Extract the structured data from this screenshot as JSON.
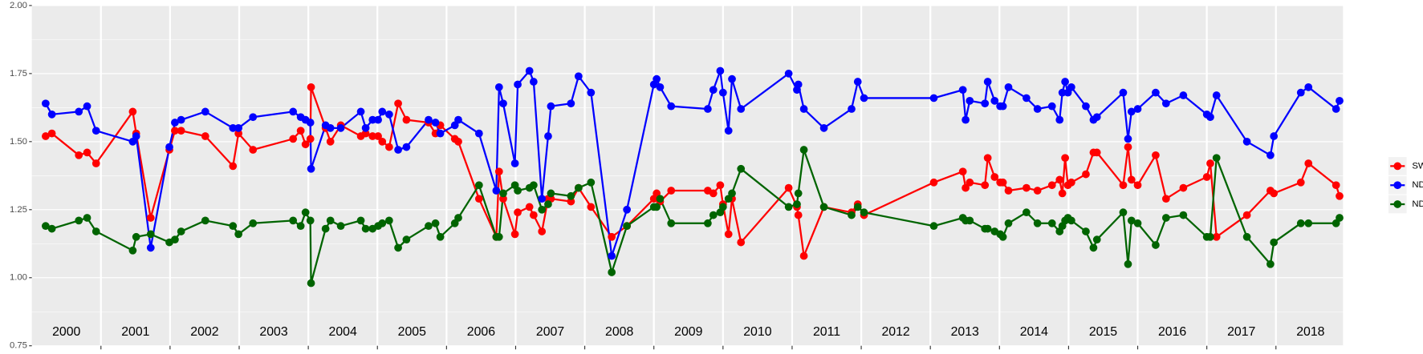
{
  "chart_data": {
    "type": "line",
    "x": [
      2000.2,
      2000.29,
      2000.68,
      2000.8,
      2000.93,
      2001.46,
      2001.51,
      2001.72,
      2001.99,
      2002.07,
      2002.16,
      2002.51,
      2002.91,
      2002.99,
      2003.2,
      2003.78,
      2003.89,
      2003.96,
      2004.03,
      2004.04,
      2004.25,
      2004.32,
      2004.47,
      2004.76,
      2004.83,
      2004.93,
      2005.01,
      2005.07,
      2005.17,
      2005.3,
      2005.42,
      2005.74,
      2005.84,
      2005.91,
      2006.12,
      2006.17,
      2006.47,
      2006.72,
      2006.76,
      2006.82,
      2006.99,
      2007.03,
      2007.2,
      2007.26,
      2007.38,
      2007.47,
      2007.51,
      2007.8,
      2007.91,
      2008.09,
      2008.39,
      2008.61,
      2009,
      2009.04,
      2009.09,
      2009.25,
      2009.78,
      2009.86,
      2009.96,
      2010,
      2010.08,
      2010.13,
      2010.26,
      2010.95,
      2011.07,
      2011.09,
      2011.17,
      2011.46,
      2011.86,
      2011.95,
      2012.04,
      2013.05,
      2013.47,
      2013.51,
      2013.57,
      2013.79,
      2013.83,
      2013.93,
      2014.01,
      2014.05,
      2014.13,
      2014.39,
      2014.55,
      2014.76,
      2014.87,
      2014.91,
      2014.95,
      2014.99,
      2015.04,
      2015.25,
      2015.36,
      2015.41,
      2015.79,
      2015.86,
      2015.91,
      2016,
      2016.26,
      2016.41,
      2016.66,
      2017,
      2017.05,
      2017.14,
      2017.58,
      2017.92,
      2017.97,
      2018.36,
      2018.47,
      2018.87,
      2018.92
    ],
    "series": [
      {
        "name": "SWIR",
        "color": "#ff0000",
        "values": [
          1.52,
          1.53,
          1.45,
          1.46,
          1.42,
          1.61,
          1.53,
          1.22,
          1.47,
          1.54,
          1.54,
          1.52,
          1.41,
          1.53,
          1.47,
          1.51,
          1.54,
          1.49,
          1.51,
          1.7,
          1.55,
          1.5,
          1.56,
          1.52,
          1.53,
          1.52,
          1.52,
          1.5,
          1.48,
          1.64,
          1.58,
          1.57,
          1.53,
          1.56,
          1.51,
          1.5,
          1.29,
          1.15,
          1.39,
          1.29,
          1.16,
          1.24,
          1.26,
          1.23,
          1.17,
          1.29,
          1.29,
          1.28,
          1.33,
          1.26,
          1.15,
          1.19,
          1.29,
          1.31,
          1.28,
          1.32,
          1.32,
          1.31,
          1.34,
          1.27,
          1.16,
          1.29,
          1.13,
          1.33,
          1.26,
          1.23,
          1.08,
          1.26,
          1.24,
          1.27,
          1.23,
          1.35,
          1.39,
          1.33,
          1.35,
          1.34,
          1.44,
          1.37,
          1.35,
          1.35,
          1.32,
          1.33,
          1.32,
          1.34,
          1.36,
          1.31,
          1.44,
          1.34,
          1.35,
          1.38,
          1.46,
          1.46,
          1.34,
          1.48,
          1.36,
          1.34,
          1.45,
          1.29,
          1.33,
          1.37,
          1.42,
          1.15,
          1.23,
          1.32,
          1.31,
          1.35,
          1.42,
          1.34,
          1.3
        ]
      },
      {
        "name": "NDVI",
        "color": "#0000ff",
        "values": [
          1.64,
          1.6,
          1.61,
          1.63,
          1.54,
          1.5,
          1.52,
          1.11,
          1.48,
          1.57,
          1.58,
          1.61,
          1.55,
          1.55,
          1.59,
          1.61,
          1.59,
          1.58,
          1.57,
          1.4,
          1.56,
          1.55,
          1.55,
          1.61,
          1.55,
          1.58,
          1.58,
          1.61,
          1.6,
          1.47,
          1.48,
          1.58,
          1.57,
          1.53,
          1.56,
          1.58,
          1.53,
          1.32,
          1.7,
          1.64,
          1.42,
          1.71,
          1.76,
          1.72,
          1.29,
          1.52,
          1.63,
          1.64,
          1.74,
          1.68,
          1.08,
          1.25,
          1.71,
          1.73,
          1.7,
          1.63,
          1.62,
          1.69,
          1.76,
          1.68,
          1.54,
          1.73,
          1.62,
          1.75,
          1.69,
          1.71,
          1.62,
          1.55,
          1.62,
          1.72,
          1.66,
          1.66,
          1.69,
          1.58,
          1.65,
          1.64,
          1.72,
          1.65,
          1.63,
          1.63,
          1.7,
          1.66,
          1.62,
          1.63,
          1.58,
          1.68,
          1.72,
          1.68,
          1.7,
          1.63,
          1.58,
          1.59,
          1.68,
          1.51,
          1.61,
          1.62,
          1.68,
          1.64,
          1.67,
          1.6,
          1.59,
          1.67,
          1.5,
          1.45,
          1.52,
          1.68,
          1.7,
          1.62,
          1.65
        ]
      },
      {
        "name": "NDWI",
        "color": "#006400",
        "values": [
          1.19,
          1.18,
          1.21,
          1.22,
          1.17,
          1.1,
          1.15,
          1.16,
          1.13,
          1.14,
          1.17,
          1.21,
          1.19,
          1.16,
          1.2,
          1.21,
          1.19,
          1.24,
          1.21,
          0.98,
          1.18,
          1.21,
          1.19,
          1.21,
          1.18,
          1.18,
          1.19,
          1.2,
          1.21,
          1.11,
          1.14,
          1.19,
          1.2,
          1.15,
          1.2,
          1.22,
          1.34,
          1.15,
          1.15,
          1.31,
          1.34,
          1.32,
          1.33,
          1.34,
          1.25,
          1.27,
          1.31,
          1.3,
          1.33,
          1.35,
          1.02,
          1.19,
          1.26,
          1.26,
          1.29,
          1.2,
          1.2,
          1.23,
          1.24,
          1.26,
          1.29,
          1.31,
          1.4,
          1.26,
          1.27,
          1.31,
          1.47,
          1.26,
          1.23,
          1.26,
          1.24,
          1.19,
          1.22,
          1.21,
          1.21,
          1.18,
          1.18,
          1.17,
          1.16,
          1.15,
          1.2,
          1.24,
          1.2,
          1.2,
          1.17,
          1.19,
          1.21,
          1.22,
          1.21,
          1.17,
          1.11,
          1.14,
          1.24,
          1.05,
          1.21,
          1.2,
          1.12,
          1.22,
          1.23,
          1.15,
          1.15,
          1.44,
          1.15,
          1.05,
          1.13,
          1.2,
          1.2,
          1.2,
          1.22
        ]
      }
    ],
    "xlim": [
      2000,
      2018.97
    ],
    "xticks": [
      {
        "value": 2000.5,
        "label": "2000"
      },
      {
        "value": 2001.5,
        "label": "2001"
      },
      {
        "value": 2002.5,
        "label": "2002"
      },
      {
        "value": 2003.5,
        "label": "2003"
      },
      {
        "value": 2004.5,
        "label": "2004"
      },
      {
        "value": 2005.5,
        "label": "2005"
      },
      {
        "value": 2006.5,
        "label": "2006"
      },
      {
        "value": 2007.5,
        "label": "2007"
      },
      {
        "value": 2008.5,
        "label": "2008"
      },
      {
        "value": 2009.5,
        "label": "2009"
      },
      {
        "value": 2010.5,
        "label": "2010"
      },
      {
        "value": 2011.5,
        "label": "2011"
      },
      {
        "value": 2012.5,
        "label": "2012"
      },
      {
        "value": 2013.5,
        "label": "2013"
      },
      {
        "value": 2014.5,
        "label": "2014"
      },
      {
        "value": 2015.5,
        "label": "2015"
      },
      {
        "value": 2016.5,
        "label": "2016"
      },
      {
        "value": 2017.5,
        "label": "2017"
      },
      {
        "value": 2018.5,
        "label": "2018"
      }
    ],
    "ylim": [
      0.75,
      2.0
    ],
    "yticks": [
      0.75,
      {
        "value": 1.0,
        "label": "1.00"
      },
      1.25,
      {
        "value": 1.5,
        "label": "1.50"
      },
      1.75,
      {
        "value": 2.0,
        "label": "2.00"
      }
    ],
    "grid": true,
    "legend": "right"
  }
}
